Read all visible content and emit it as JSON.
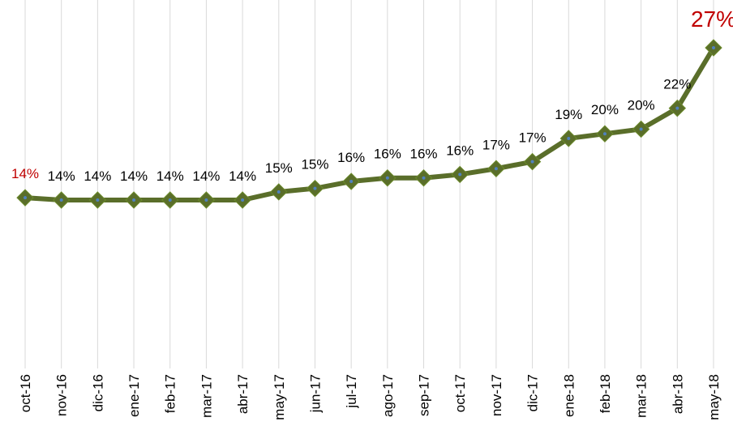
{
  "chart_data": {
    "type": "line",
    "categories": [
      "oct-16",
      "nov-16",
      "dic-16",
      "ene-17",
      "feb-17",
      "mar-17",
      "abr-17",
      "may-17",
      "jun-17",
      "jul-17",
      "ago-17",
      "sep-17",
      "oct-17",
      "nov-17",
      "dic-17",
      "ene-18",
      "feb-18",
      "mar-18",
      "abr-18",
      "may-18"
    ],
    "values": [
      14.1,
      13.9,
      13.9,
      13.9,
      13.9,
      13.9,
      13.9,
      14.6,
      14.9,
      15.5,
      15.8,
      15.8,
      16.1,
      16.6,
      17.2,
      19.2,
      19.6,
      20.0,
      21.8,
      27.0
    ],
    "value_labels": [
      "14%",
      "14%",
      "14%",
      "14%",
      "14%",
      "14%",
      "14%",
      "15%",
      "15%",
      "16%",
      "16%",
      "16%",
      "16%",
      "17%",
      "17%",
      "19%",
      "20%",
      "20%",
      "22%",
      "27%"
    ],
    "color": "#5a6e2a",
    "marker_color": "#4f81bd",
    "label_color": "#000000",
    "highlight_color": "#c00000",
    "highlight": [
      0,
      19
    ],
    "grid": true
  }
}
